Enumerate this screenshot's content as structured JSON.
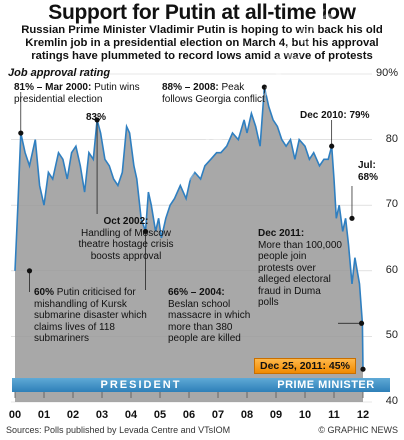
{
  "title": "Support for Putin at all-time low",
  "subtitle": "Russian Prime Minister Vladimir Putin is hoping to win back his old Kremlin job in a presidential election on March 4, but his approval ratings have plummeted to record lows amid a wave of protests",
  "source": "Sources: Polls published by Levada Centre and VTsIOM",
  "credit": "© GRAPHIC NEWS",
  "watermark": "GRAPHIC NEWS",
  "colors": {
    "line": "#2f7fc0",
    "fill": "#999999",
    "band": "#3f93c9",
    "highlight": "#f5a11e"
  },
  "chart_data": {
    "type": "area",
    "ylabel": "Job approval rating",
    "ylim": [
      40,
      90
    ],
    "yticks": [
      "90%",
      "80",
      "70",
      "60",
      "50",
      "40"
    ],
    "xlabels": [
      "00",
      "01",
      "02",
      "03",
      "04",
      "05",
      "06",
      "07",
      "08",
      "09",
      "10",
      "11",
      "12"
    ],
    "series": [
      {
        "points": [
          [
            2000.0,
            60
          ],
          [
            2000.1,
            70
          ],
          [
            2000.2,
            81
          ],
          [
            2000.35,
            78
          ],
          [
            2000.5,
            76
          ],
          [
            2000.7,
            80
          ],
          [
            2000.85,
            73
          ],
          [
            2001.0,
            70
          ],
          [
            2001.15,
            75
          ],
          [
            2001.3,
            74
          ],
          [
            2001.5,
            78
          ],
          [
            2001.65,
            77
          ],
          [
            2001.8,
            74
          ],
          [
            2001.95,
            78
          ],
          [
            2002.1,
            79
          ],
          [
            2002.25,
            76
          ],
          [
            2002.4,
            72
          ],
          [
            2002.55,
            78
          ],
          [
            2002.7,
            77
          ],
          [
            2002.83,
            83
          ],
          [
            2002.95,
            81
          ],
          [
            2003.1,
            77
          ],
          [
            2003.25,
            76
          ],
          [
            2003.4,
            74
          ],
          [
            2003.55,
            73
          ],
          [
            2003.7,
            75
          ],
          [
            2003.85,
            82
          ],
          [
            2003.95,
            81
          ],
          [
            2004.1,
            76
          ],
          [
            2004.2,
            74
          ],
          [
            2004.35,
            68
          ],
          [
            2004.5,
            66
          ],
          [
            2004.6,
            72
          ],
          [
            2004.7,
            70
          ],
          [
            2004.85,
            66
          ],
          [
            2004.95,
            68
          ],
          [
            2005.05,
            65
          ],
          [
            2005.2,
            68
          ],
          [
            2005.35,
            70
          ],
          [
            2005.5,
            71
          ],
          [
            2005.7,
            73
          ],
          [
            2005.9,
            71
          ],
          [
            2006.05,
            74
          ],
          [
            2006.2,
            75
          ],
          [
            2006.4,
            74
          ],
          [
            2006.55,
            76
          ],
          [
            2006.75,
            77
          ],
          [
            2006.95,
            78
          ],
          [
            2007.1,
            78
          ],
          [
            2007.3,
            79
          ],
          [
            2007.5,
            81
          ],
          [
            2007.7,
            80
          ],
          [
            2007.9,
            83
          ],
          [
            2008.0,
            81
          ],
          [
            2008.15,
            84
          ],
          [
            2008.3,
            82
          ],
          [
            2008.45,
            79
          ],
          [
            2008.6,
            88
          ],
          [
            2008.75,
            85
          ],
          [
            2008.9,
            83
          ],
          [
            2009.05,
            82
          ],
          [
            2009.2,
            80
          ],
          [
            2009.35,
            79
          ],
          [
            2009.5,
            80
          ],
          [
            2009.65,
            77
          ],
          [
            2009.8,
            80
          ],
          [
            2010.0,
            79
          ],
          [
            2010.15,
            77
          ],
          [
            2010.3,
            78
          ],
          [
            2010.5,
            76
          ],
          [
            2010.65,
            77
          ],
          [
            2010.8,
            77
          ],
          [
            2010.92,
            79
          ],
          [
            2011.0,
            74
          ],
          [
            2011.08,
            68
          ],
          [
            2011.18,
            70
          ],
          [
            2011.3,
            66
          ],
          [
            2011.4,
            68
          ],
          [
            2011.5,
            64
          ],
          [
            2011.62,
            58
          ],
          [
            2011.72,
            62
          ],
          [
            2011.8,
            60
          ],
          [
            2011.88,
            58
          ],
          [
            2011.98,
            52
          ],
          [
            2012.0,
            45
          ]
        ]
      }
    ],
    "annotations": [
      {
        "date": "81% – Mar 2000:",
        "text": "Putin wins presidential election"
      },
      {
        "date": "83%",
        "text": ""
      },
      {
        "date": "88% – 2008:",
        "text": "Peak follows Georgia conflict"
      },
      {
        "date": "Dec 2010: 79%",
        "text": ""
      },
      {
        "date": "Jul:",
        "text": "68%"
      },
      {
        "date": "Oct 2002:",
        "text": "Handling of Moscow theatre hostage crisis boosts approval"
      },
      {
        "date": "60%",
        "text": "Putin criticised for mishandling of Kursk submarine disaster which claims lives of 118 submariners"
      },
      {
        "date": "66% – 2004:",
        "text": "Beslan school massacre in which more than 380 people are killed"
      },
      {
        "date": "Dec 2011:",
        "text": "More than 100,000 people join protests over alleged electoral fraud in Duma polls"
      }
    ],
    "latest": "Dec 25, 2011: 45%",
    "bands": [
      "PRESIDENT",
      "PRIME MINISTER"
    ]
  }
}
